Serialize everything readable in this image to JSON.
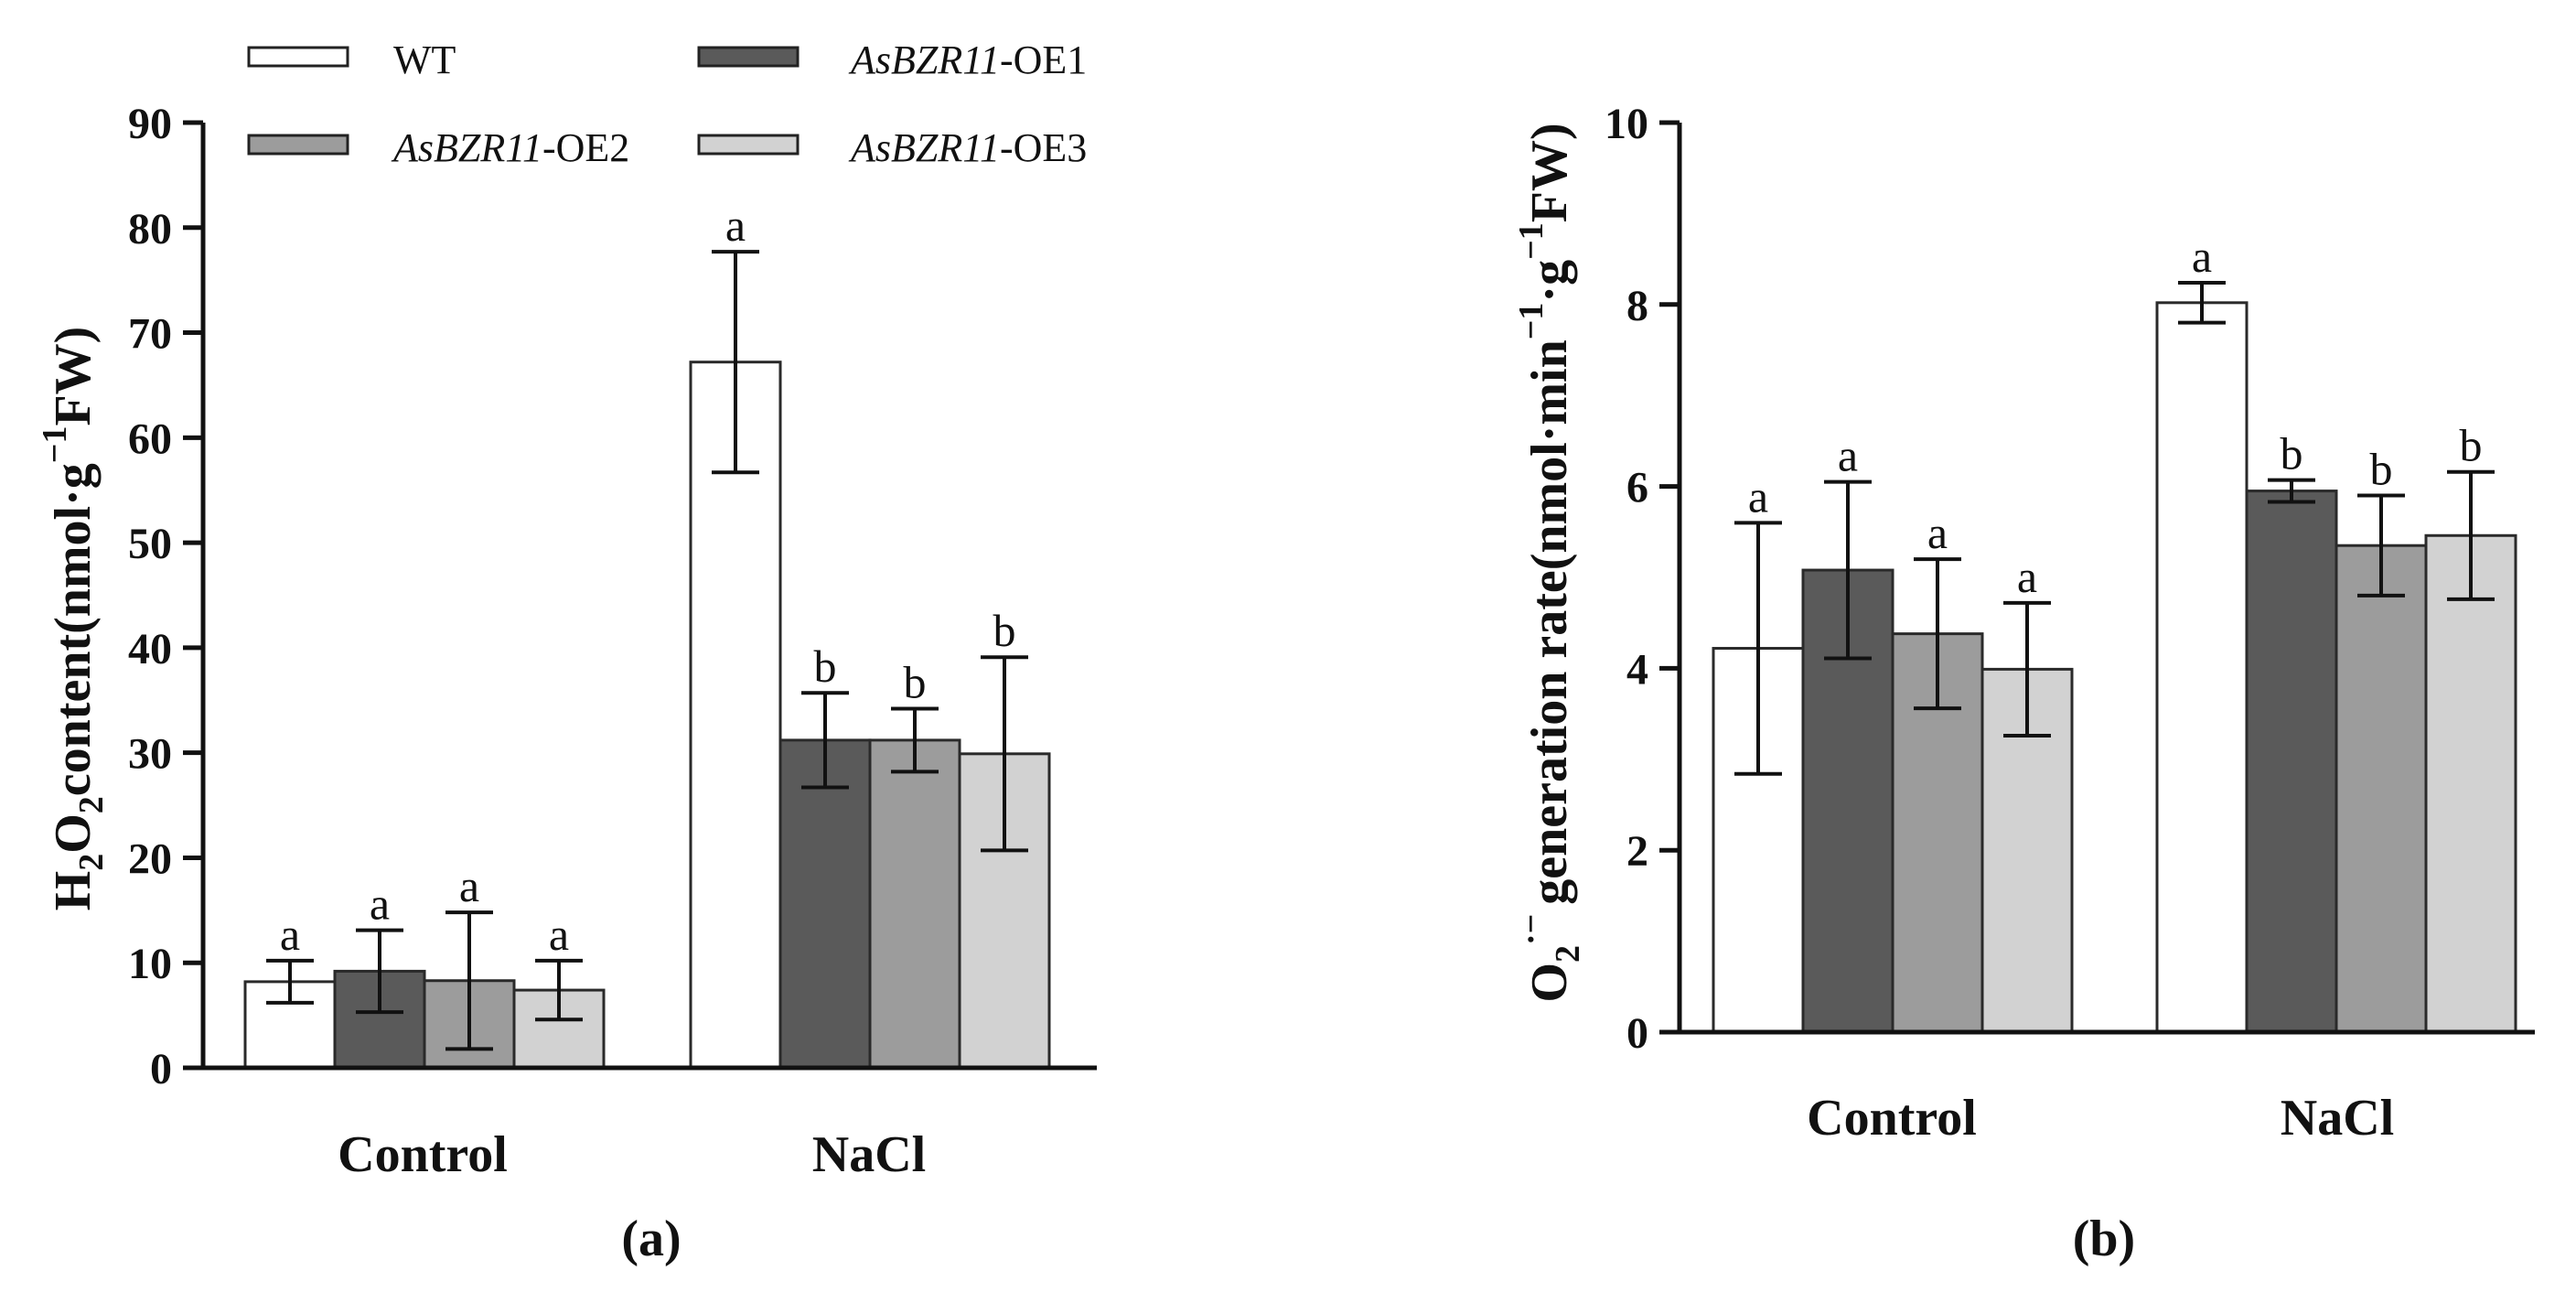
{
  "legend": {
    "entries": [
      {
        "italic": "",
        "rest": "WT",
        "color": "#ffffff"
      },
      {
        "italic": "AsBZR11",
        "rest": "-OE1",
        "color": "#5a5a5a"
      },
      {
        "italic": "AsBZR11",
        "rest": "-OE2",
        "color": "#9c9c9c"
      },
      {
        "italic": "AsBZR11",
        "rest": "-OE3",
        "color": "#d2d2d2"
      }
    ]
  },
  "chart_data": [
    {
      "type": "bar",
      "panel_label": "(a)",
      "ylabel": {
        "p1": "H",
        "s1": "2",
        "p2": "O",
        "s2": "2",
        "p3": "content(nmol·g",
        "sup": "−1",
        "p4": "FW)"
      },
      "ylim": [
        0,
        90
      ],
      "yticks": [
        "0",
        "10",
        "20",
        "30",
        "40",
        "50",
        "60",
        "70",
        "80",
        "90"
      ],
      "categories": [
        "Control",
        "NaCl"
      ],
      "series": [
        {
          "name": "WT",
          "values": [
            8.2,
            67.2
          ],
          "errors": [
            2.0,
            10.5
          ],
          "letters": [
            "a",
            "a"
          ]
        },
        {
          "name": "AsBZR11-OE1",
          "values": [
            9.2,
            31.2
          ],
          "errors": [
            3.9,
            4.5
          ],
          "letters": [
            "a",
            "b"
          ]
        },
        {
          "name": "AsBZR11-OE2",
          "values": [
            8.3,
            31.2
          ],
          "errors": [
            6.5,
            3.0
          ],
          "letters": [
            "a",
            "b"
          ]
        },
        {
          "name": "AsBZR11-OE3",
          "values": [
            7.4,
            29.9
          ],
          "errors": [
            2.8,
            9.2
          ],
          "letters": [
            "a",
            "b"
          ]
        }
      ]
    },
    {
      "type": "bar",
      "panel_label": "(b)",
      "ylabel": {
        "p1": "O",
        "s1": "2",
        "sup1": "·−",
        "p2": "generation rate(nmol·min",
        "sup2": "−1",
        "p3": "·g",
        "sup3": "−1",
        "p4": "FW)"
      },
      "ylim": [
        0,
        10
      ],
      "yticks": [
        "0",
        "2",
        "4",
        "6",
        "8",
        "10"
      ],
      "categories": [
        "Control",
        "NaCl"
      ],
      "series": [
        {
          "name": "WT",
          "values": [
            4.22,
            8.02
          ],
          "errors": [
            1.38,
            0.22
          ],
          "letters": [
            "a",
            "a"
          ]
        },
        {
          "name": "AsBZR11-OE1",
          "values": [
            5.08,
            5.95
          ],
          "errors": [
            0.97,
            0.12
          ],
          "letters": [
            "a",
            "b"
          ]
        },
        {
          "name": "AsBZR11-OE2",
          "values": [
            4.38,
            5.35
          ],
          "errors": [
            0.82,
            0.55
          ],
          "letters": [
            "a",
            "b"
          ]
        },
        {
          "name": "AsBZR11-OE3",
          "values": [
            3.99,
            5.46
          ],
          "errors": [
            0.73,
            0.7
          ],
          "letters": [
            "a",
            "b"
          ]
        }
      ]
    }
  ]
}
